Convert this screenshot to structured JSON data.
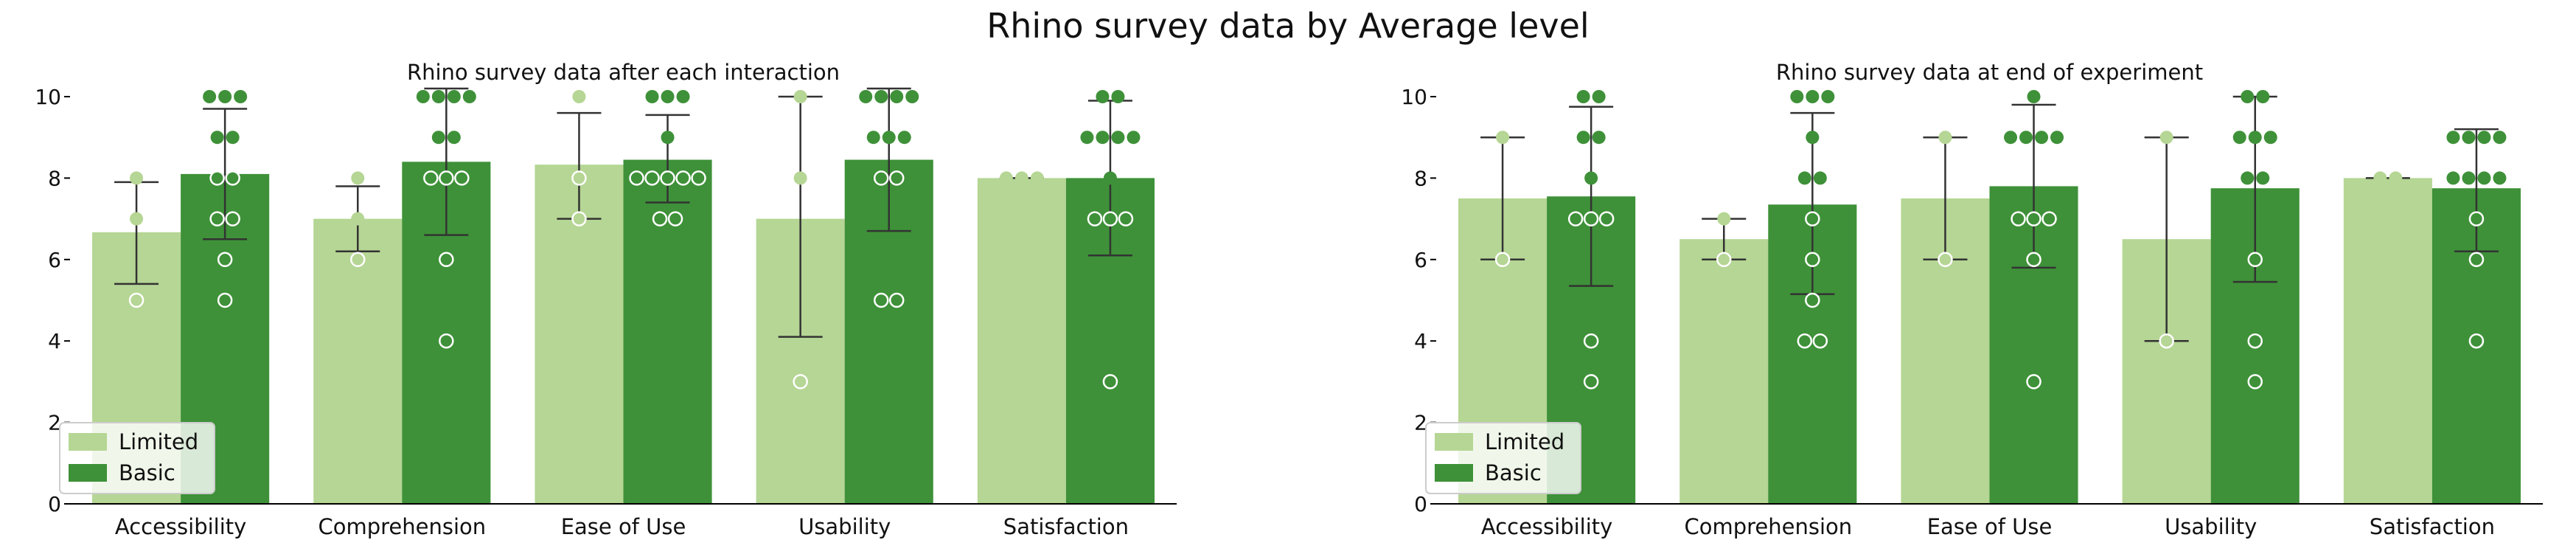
{
  "figure_title": "Rhino survey data by Average level",
  "colors": {
    "limited": "#b5d694",
    "basic": "#3e9138",
    "errorbar": "#333333",
    "axis": "#000000"
  },
  "chart_data": [
    {
      "type": "bar",
      "title": "Rhino survey data after each interaction",
      "xlabel": "",
      "ylabel": "",
      "categories": [
        "Accessibility",
        "Comprehension",
        "Ease of Use",
        "Usability",
        "Satisfaction"
      ],
      "ylim": [
        0,
        10.5
      ],
      "yticks": [
        0,
        2,
        4,
        6,
        8,
        10
      ],
      "legend": {
        "placement": "bottom-left",
        "entries": [
          "Limited",
          "Basic"
        ]
      },
      "series": [
        {
          "name": "Limited",
          "values": [
            6.67,
            7.0,
            8.33,
            7.0,
            8.0
          ],
          "error_low": [
            5.4,
            6.2,
            7.0,
            4.1,
            8.0
          ],
          "error_high": [
            7.9,
            7.8,
            9.6,
            10.0,
            8.0
          ],
          "points": [
            [
              8,
              7,
              5
            ],
            [
              8,
              7,
              6
            ],
            [
              10,
              8,
              7
            ],
            [
              10,
              8,
              3
            ],
            [
              8,
              8,
              8
            ]
          ]
        },
        {
          "name": "Basic",
          "values": [
            8.1,
            8.4,
            8.45,
            8.45,
            8.0
          ],
          "error_low": [
            6.5,
            6.6,
            7.4,
            6.7,
            6.1
          ],
          "error_high": [
            9.7,
            10.2,
            9.55,
            10.2,
            9.9
          ],
          "points": [
            [
              10,
              10,
              10,
              9,
              9,
              8,
              8,
              7,
              7,
              6,
              5
            ],
            [
              10,
              10,
              10,
              10,
              9,
              9,
              8,
              8,
              8,
              6,
              4
            ],
            [
              10,
              10,
              10,
              9,
              8,
              8,
              8,
              8,
              8,
              7,
              7
            ],
            [
              10,
              10,
              10,
              10,
              9,
              9,
              9,
              8,
              8,
              5,
              5
            ],
            [
              10,
              10,
              9,
              9,
              9,
              9,
              8,
              7,
              7,
              7,
              3
            ]
          ]
        }
      ]
    },
    {
      "type": "bar",
      "title": "Rhino survey data at end of experiment",
      "xlabel": "",
      "ylabel": "",
      "categories": [
        "Accessibility",
        "Comprehension",
        "Ease of Use",
        "Usability",
        "Satisfaction"
      ],
      "ylim": [
        0,
        10.5
      ],
      "yticks": [
        0,
        2,
        4,
        6,
        8,
        10
      ],
      "legend": {
        "placement": "bottom-left",
        "entries": [
          "Limited",
          "Basic"
        ]
      },
      "series": [
        {
          "name": "Limited",
          "values": [
            7.5,
            6.5,
            7.5,
            6.5,
            8.0
          ],
          "error_low": [
            6.0,
            6.0,
            6.0,
            4.0,
            8.0
          ],
          "error_high": [
            9.0,
            7.0,
            9.0,
            9.0,
            8.0
          ],
          "points": [
            [
              9,
              6
            ],
            [
              7,
              6
            ],
            [
              9,
              6
            ],
            [
              9,
              4
            ],
            [
              8,
              8
            ]
          ]
        },
        {
          "name": "Basic",
          "values": [
            7.55,
            7.35,
            7.8,
            7.75,
            7.75
          ],
          "error_low": [
            5.35,
            5.15,
            5.8,
            5.45,
            6.2
          ],
          "error_high": [
            9.75,
            9.6,
            9.8,
            10.0,
            9.2
          ],
          "points": [
            [
              10,
              10,
              9,
              9,
              8,
              7,
              7,
              7,
              4,
              3
            ],
            [
              10,
              10,
              10,
              9,
              8,
              8,
              7,
              6,
              5,
              4,
              4
            ],
            [
              10,
              9,
              9,
              9,
              9,
              7,
              7,
              7,
              6,
              3
            ],
            [
              10,
              10,
              9,
              9,
              9,
              8,
              8,
              6,
              4,
              3
            ],
            [
              9,
              9,
              9,
              9,
              8,
              8,
              8,
              8,
              7,
              6,
              4
            ]
          ]
        }
      ]
    }
  ]
}
